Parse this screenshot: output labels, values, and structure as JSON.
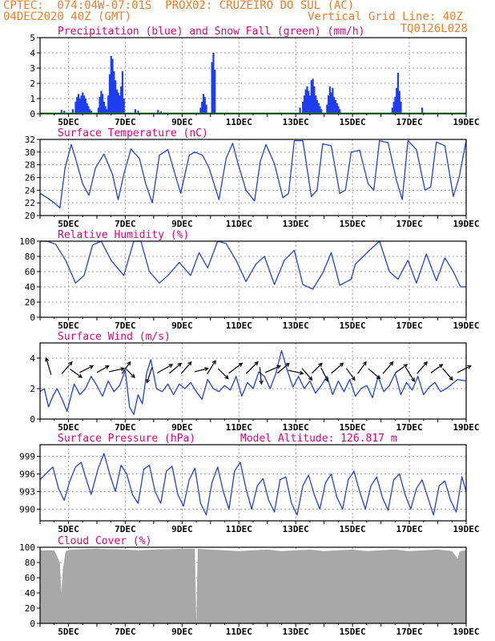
{
  "header": {
    "station": "CPTEC:  074:04W-07:01S  PROX02: CRUZEIRO DO SUL (AC)",
    "date": "04DEC2020 40Z (GMT)",
    "grid_note": "Vertical Grid Line: 40Z",
    "model_code": "TQ0126L028"
  },
  "colors": {
    "header": "#f07a28",
    "title": "#e0007a",
    "line": "#2040e0",
    "precip": "#1e3cf0",
    "snow": "#10a020",
    "cloud": "#a8a8a8",
    "arrow": "#000000"
  },
  "chart_data": [
    {
      "id": "precip",
      "type": "bar",
      "title": "Precipitation (blue) and Snow Fall (green) (mm/h)",
      "ylim": [
        0,
        5
      ],
      "yticks": [
        "0",
        "1",
        "2",
        "3",
        "4",
        "5"
      ],
      "xlim": [
        4.0,
        19.0
      ],
      "xticks": [
        "5DEC",
        "7DEC",
        "9DEC",
        "11DEC",
        "13DEC",
        "15DEC",
        "17DEC",
        "19DEC"
      ],
      "series": [
        {
          "name": "Precipitation",
          "x": [
            4.75,
            4.85,
            5.15,
            5.25,
            5.3,
            5.35,
            5.4,
            5.45,
            5.5,
            5.55,
            5.6,
            5.65,
            5.7,
            5.75,
            5.8,
            6.05,
            6.1,
            6.15,
            6.2,
            6.25,
            6.3,
            6.35,
            6.4,
            6.45,
            6.5,
            6.55,
            6.6,
            6.65,
            6.7,
            6.75,
            6.8,
            6.85,
            6.9,
            6.95,
            7.35,
            7.45,
            8.15,
            8.25,
            9.65,
            9.7,
            9.75,
            9.8,
            9.85,
            10.05,
            10.1,
            10.15,
            13.15,
            13.25,
            13.3,
            13.35,
            13.4,
            13.45,
            13.5,
            13.55,
            13.6,
            13.65,
            13.7,
            13.75,
            13.8,
            13.85,
            13.9,
            14.1,
            14.15,
            14.2,
            14.25,
            14.3,
            14.35,
            14.4,
            14.45,
            14.5,
            14.55,
            16.4,
            16.45,
            16.5,
            16.55,
            16.6,
            16.65,
            16.7,
            17.45
          ],
          "values": [
            0.25,
            0.2,
            0.3,
            0.8,
            1.1,
            1.3,
            1.0,
            1.2,
            1.4,
            1.2,
            1.0,
            0.7,
            0.5,
            0.3,
            0.2,
            0.4,
            1.1,
            1.5,
            1.3,
            0.8,
            0.5,
            0.3,
            1.2,
            2.6,
            3.8,
            3.6,
            2.8,
            2.2,
            1.6,
            1.4,
            1.2,
            1.8,
            2.8,
            1.0,
            0.3,
            0.2,
            0.25,
            0.15,
            0.4,
            0.8,
            1.3,
            1.1,
            0.6,
            3.4,
            4.0,
            2.9,
            0.4,
            0.8,
            1.2,
            1.6,
            1.8,
            1.5,
            1.2,
            2.2,
            2.3,
            1.8,
            1.2,
            0.9,
            0.7,
            0.5,
            0.3,
            0.6,
            1.2,
            1.8,
            1.4,
            1.7,
            1.1,
            0.9,
            0.7,
            0.5,
            0.3,
            0.4,
            0.8,
            1.1,
            1.7,
            2.7,
            1.5,
            0.8,
            0.4
          ]
        },
        {
          "name": "Snow Fall",
          "x": [
            4.0,
            19.0
          ],
          "values": [
            0,
            0
          ]
        }
      ]
    },
    {
      "id": "temp",
      "type": "line",
      "title": "Surface Temperature (nC)",
      "ylim": [
        20,
        32
      ],
      "yticks": [
        "20",
        "22",
        "24",
        "26",
        "28",
        "30",
        "32"
      ],
      "xlim": [
        4.0,
        19.0
      ],
      "xticks": [
        "5DEC",
        "7DEC",
        "9DEC",
        "11DEC",
        "13DEC",
        "15DEC",
        "17DEC",
        "19DEC"
      ],
      "x": [
        4.0,
        4.25,
        4.5,
        4.7,
        4.88,
        5.1,
        5.25,
        5.5,
        5.72,
        5.95,
        6.25,
        6.55,
        6.75,
        6.95,
        7.2,
        7.5,
        7.72,
        7.95,
        8.2,
        8.5,
        8.75,
        8.95,
        9.25,
        9.45,
        9.72,
        9.95,
        10.3,
        10.55,
        10.78,
        10.95,
        11.25,
        11.55,
        11.75,
        11.95,
        12.25,
        12.55,
        12.75,
        12.95,
        13.25,
        13.55,
        13.75,
        13.95,
        14.25,
        14.55,
        14.75,
        14.95,
        15.25,
        15.55,
        15.75,
        15.95,
        16.25,
        16.55,
        16.75,
        16.95,
        17.25,
        17.55,
        17.75,
        17.95,
        18.25,
        18.55,
        18.75,
        19.0
      ],
      "values": [
        23.5,
        22.8,
        22.0,
        21.2,
        27.5,
        31.2,
        29.0,
        25.0,
        23.2,
        27.5,
        29.7,
        26.5,
        22.5,
        26.5,
        30.5,
        29.0,
        25.0,
        22.0,
        29.5,
        30.4,
        26.5,
        23.5,
        29.5,
        30.0,
        29.5,
        27.5,
        22.5,
        29.0,
        31.4,
        28.5,
        24.0,
        22.3,
        28.5,
        31.2,
        28.2,
        22.8,
        23.5,
        31.8,
        31.8,
        23.0,
        24.0,
        31.3,
        31.0,
        23.5,
        24.0,
        30.0,
        30.3,
        25.0,
        24.0,
        31.8,
        31.5,
        25.5,
        22.5,
        31.8,
        30.4,
        24.0,
        24.5,
        31.6,
        31.0,
        23.0,
        26.0,
        31.8
      ]
    },
    {
      "id": "rh",
      "type": "line",
      "title": "Relative Humidity (%)",
      "ylim": [
        0,
        100
      ],
      "yticks": [
        "0",
        "20",
        "40",
        "60",
        "80",
        "100"
      ],
      "xlim": [
        4.0,
        19.0
      ],
      "xticks": [
        "5DEC",
        "7DEC",
        "9DEC",
        "11DEC",
        "13DEC",
        "15DEC",
        "17DEC",
        "19DEC"
      ],
      "x": [
        4.0,
        4.25,
        4.55,
        4.9,
        5.25,
        5.55,
        5.85,
        6.15,
        6.5,
        6.95,
        7.3,
        7.55,
        7.85,
        8.2,
        8.5,
        8.9,
        9.3,
        9.6,
        9.9,
        10.25,
        10.55,
        10.9,
        11.25,
        11.6,
        11.9,
        12.25,
        12.6,
        12.95,
        13.25,
        13.6,
        13.95,
        14.25,
        14.55,
        14.95,
        15.1,
        15.6,
        15.95,
        16.3,
        16.6,
        16.95,
        17.25,
        17.6,
        17.95,
        18.25,
        18.55,
        18.8,
        19.0
      ],
      "values": [
        100,
        100,
        96,
        75,
        45,
        55,
        95,
        100,
        75,
        55,
        100,
        100,
        60,
        45,
        55,
        72,
        55,
        85,
        65,
        100,
        97,
        75,
        47,
        70,
        80,
        43,
        75,
        88,
        43,
        37,
        58,
        85,
        42,
        50,
        70,
        88,
        100,
        60,
        50,
        75,
        45,
        83,
        48,
        78,
        60,
        40,
        40
      ]
    },
    {
      "id": "wind",
      "type": "line",
      "title": "Surface Wind (m/s)",
      "ylim": [
        0,
        5
      ],
      "yticks": [
        "0",
        "2",
        "4"
      ],
      "xlim": [
        4.0,
        19.0
      ],
      "xticks": [
        "5DEC",
        "7DEC",
        "9DEC",
        "11DEC",
        "13DEC",
        "15DEC",
        "17DEC",
        "19DEC"
      ],
      "x": [
        4.0,
        4.15,
        4.3,
        4.45,
        4.6,
        4.8,
        4.95,
        5.2,
        5.4,
        5.6,
        5.8,
        6.0,
        6.2,
        6.4,
        6.6,
        6.8,
        7.0,
        7.15,
        7.3,
        7.45,
        7.6,
        7.75,
        7.9,
        8.1,
        8.3,
        8.5,
        8.7,
        8.9,
        9.1,
        9.3,
        9.5,
        9.7,
        9.9,
        10.1,
        10.3,
        10.5,
        10.7,
        10.9,
        11.1,
        11.3,
        11.5,
        11.7,
        11.9,
        12.1,
        12.3,
        12.5,
        12.7,
        12.9,
        13.1,
        13.3,
        13.5,
        13.7,
        13.9,
        14.1,
        14.3,
        14.5,
        14.7,
        14.9,
        15.1,
        15.3,
        15.5,
        15.7,
        15.9,
        16.1,
        16.3,
        16.5,
        16.7,
        16.9,
        17.1,
        17.3,
        17.5,
        17.7,
        17.9,
        18.1,
        18.3,
        18.5,
        18.7,
        19.0
      ],
      "values": [
        1.8,
        2.0,
        0.8,
        1.5,
        2.0,
        1.2,
        0.5,
        2.3,
        1.6,
        2.0,
        2.8,
        2.2,
        1.5,
        2.5,
        1.8,
        2.2,
        3.2,
        0.8,
        0.3,
        1.6,
        1.0,
        3.0,
        3.9,
        2.0,
        1.8,
        2.3,
        1.6,
        2.3,
        2.0,
        2.4,
        1.8,
        1.3,
        2.6,
        2.0,
        1.8,
        2.2,
        1.9,
        2.8,
        1.5,
        2.4,
        2.0,
        3.1,
        2.8,
        2.0,
        3.0,
        4.5,
        3.2,
        2.1,
        2.8,
        2.0,
        2.5,
        1.7,
        2.2,
        2.8,
        1.6,
        2.5,
        1.8,
        2.6,
        1.5,
        2.0,
        2.2,
        1.4,
        2.8,
        1.8,
        2.2,
        3.0,
        1.6,
        2.4,
        1.9,
        2.8,
        1.6,
        2.1,
        2.4,
        1.8,
        2.0,
        2.3,
        2.6,
        2.5
      ],
      "arrows": [
        {
          "x": 4.35,
          "u": -0.3,
          "v": 1.0
        },
        {
          "x": 4.85,
          "u": 0.6,
          "v": 0.7
        },
        {
          "x": 5.15,
          "u": 0.7,
          "v": -0.5
        },
        {
          "x": 5.5,
          "u": 0.8,
          "v": 0.4
        },
        {
          "x": 6.1,
          "u": 0.7,
          "v": 0.4
        },
        {
          "x": 6.55,
          "u": 0.9,
          "v": 0.2
        },
        {
          "x": 6.95,
          "u": 0.5,
          "v": 0.7
        },
        {
          "x": 7.1,
          "u": 0.5,
          "v": -0.5
        },
        {
          "x": 7.9,
          "u": -0.3,
          "v": -0.9
        },
        {
          "x": 8.25,
          "u": 0.9,
          "v": 0.5
        },
        {
          "x": 8.65,
          "u": 0.7,
          "v": 0.6
        },
        {
          "x": 9.05,
          "u": 0.6,
          "v": 0.7
        },
        {
          "x": 9.55,
          "u": 0.8,
          "v": 0.2
        },
        {
          "x": 9.95,
          "u": 0.5,
          "v": 0.8
        },
        {
          "x": 10.35,
          "u": 0.6,
          "v": -0.6
        },
        {
          "x": 10.75,
          "u": 0.8,
          "v": 0.6
        },
        {
          "x": 11.35,
          "u": 0.7,
          "v": 0.7
        },
        {
          "x": 11.75,
          "u": 0.1,
          "v": -1.0
        },
        {
          "x": 12.05,
          "u": 0.9,
          "v": 0.4
        },
        {
          "x": 12.45,
          "u": 0.7,
          "v": 0.6
        },
        {
          "x": 12.85,
          "u": 0.9,
          "v": -0.2
        },
        {
          "x": 13.3,
          "u": 0.6,
          "v": -0.7
        },
        {
          "x": 13.65,
          "u": 0.6,
          "v": 0.6
        },
        {
          "x": 13.95,
          "u": 0.4,
          "v": -0.8
        },
        {
          "x": 14.35,
          "u": 0.7,
          "v": 0.6
        },
        {
          "x": 14.85,
          "u": 0.5,
          "v": -0.7
        },
        {
          "x": 15.25,
          "u": 0.5,
          "v": 0.7
        },
        {
          "x": 15.65,
          "u": 0.7,
          "v": -0.6
        },
        {
          "x": 16.15,
          "u": 0.6,
          "v": 0.7
        },
        {
          "x": 16.6,
          "u": 0.7,
          "v": 0.5
        },
        {
          "x": 16.95,
          "u": 0.5,
          "v": -0.8
        },
        {
          "x": 17.35,
          "u": 0.6,
          "v": 0.7
        },
        {
          "x": 17.85,
          "u": 0.7,
          "v": 0.5
        },
        {
          "x": 18.25,
          "u": 0.6,
          "v": -0.7
        },
        {
          "x": 18.8,
          "u": 0.8,
          "v": 0.4
        }
      ]
    },
    {
      "id": "pressure",
      "type": "line",
      "title": "Surface Pressure (hPa)",
      "subtitle": "Model Altitude: 126.817 m",
      "ylim": [
        988,
        1001
      ],
      "yticks": [
        "990",
        "993",
        "996",
        "999"
      ],
      "ytick_values": [
        990,
        993,
        996,
        999
      ],
      "xlim": [
        4.0,
        19.0
      ],
      "xticks": [
        "5DEC",
        "7DEC",
        "9DEC",
        "11DEC",
        "13DEC",
        "15DEC",
        "17DEC",
        "19DEC"
      ],
      "x": [
        4.0,
        4.2,
        4.45,
        4.65,
        4.85,
        5.05,
        5.25,
        5.45,
        5.6,
        5.8,
        6.05,
        6.25,
        6.45,
        6.65,
        6.85,
        7.05,
        7.25,
        7.45,
        7.65,
        7.85,
        8.05,
        8.25,
        8.45,
        8.65,
        8.85,
        9.05,
        9.25,
        9.45,
        9.65,
        9.85,
        10.05,
        10.25,
        10.45,
        10.65,
        10.85,
        11.05,
        11.25,
        11.45,
        11.65,
        11.85,
        12.05,
        12.25,
        12.45,
        12.65,
        12.85,
        13.05,
        13.25,
        13.45,
        13.65,
        13.85,
        14.05,
        14.25,
        14.45,
        14.65,
        14.85,
        15.05,
        15.25,
        15.45,
        15.65,
        15.85,
        16.05,
        16.25,
        16.45,
        16.65,
        16.85,
        17.05,
        17.25,
        17.45,
        17.65,
        17.85,
        18.05,
        18.25,
        18.45,
        18.65,
        18.85,
        19.0
      ],
      "values": [
        995.0,
        996.0,
        997.2,
        993.5,
        991.5,
        994.8,
        997.2,
        998.0,
        995.5,
        992.5,
        997.0,
        999.5,
        996.0,
        993.0,
        997.5,
        996.0,
        992.5,
        991.0,
        996.8,
        997.5,
        993.0,
        991.0,
        996.5,
        997.3,
        992.5,
        990.5,
        995.0,
        997.0,
        991.0,
        989.0,
        994.5,
        997.2,
        993.0,
        990.0,
        996.5,
        998.0,
        993.5,
        990.0,
        994.0,
        995.2,
        991.5,
        989.5,
        995.0,
        995.5,
        991.0,
        989.0,
        994.0,
        995.8,
        992.5,
        990.0,
        994.5,
        996.0,
        992.0,
        990.0,
        995.0,
        996.5,
        993.0,
        990.0,
        994.0,
        995.5,
        992.0,
        989.8,
        995.0,
        996.0,
        992.5,
        990.0,
        993.5,
        995.0,
        992.0,
        989.0,
        994.0,
        994.8,
        991.5,
        989.5,
        995.5,
        993.0
      ]
    },
    {
      "id": "cloud",
      "type": "area",
      "title": "Cloud Cover (%)",
      "ylim": [
        0,
        100
      ],
      "yticks": [
        "0",
        "20",
        "40",
        "60",
        "80",
        "100"
      ],
      "xlim": [
        4.0,
        19.0
      ],
      "xticks": [
        "5DEC",
        "7DEC",
        "9DEC",
        "11DEC",
        "13DEC",
        "15DEC",
        "17DEC",
        "19DEC"
      ],
      "x": [
        4.0,
        4.5,
        4.7,
        4.75,
        4.8,
        4.9,
        5.1,
        6.0,
        7.0,
        7.5,
        8.0,
        9.0,
        9.45,
        9.5,
        9.55,
        10.0,
        10.5,
        11.0,
        11.5,
        12.0,
        12.5,
        13.0,
        13.5,
        14.0,
        14.5,
        15.0,
        15.5,
        16.0,
        16.5,
        17.0,
        17.5,
        18.0,
        18.5,
        18.7,
        18.75,
        18.8,
        19.0
      ],
      "values": [
        96,
        96,
        80,
        40,
        70,
        95,
        97,
        98,
        97,
        96,
        97,
        98,
        98,
        0,
        98,
        97,
        96,
        95,
        96,
        97,
        95,
        96,
        97,
        95,
        96,
        97,
        95,
        96,
        97,
        95,
        96,
        97,
        95,
        85,
        92,
        95,
        96
      ]
    }
  ]
}
